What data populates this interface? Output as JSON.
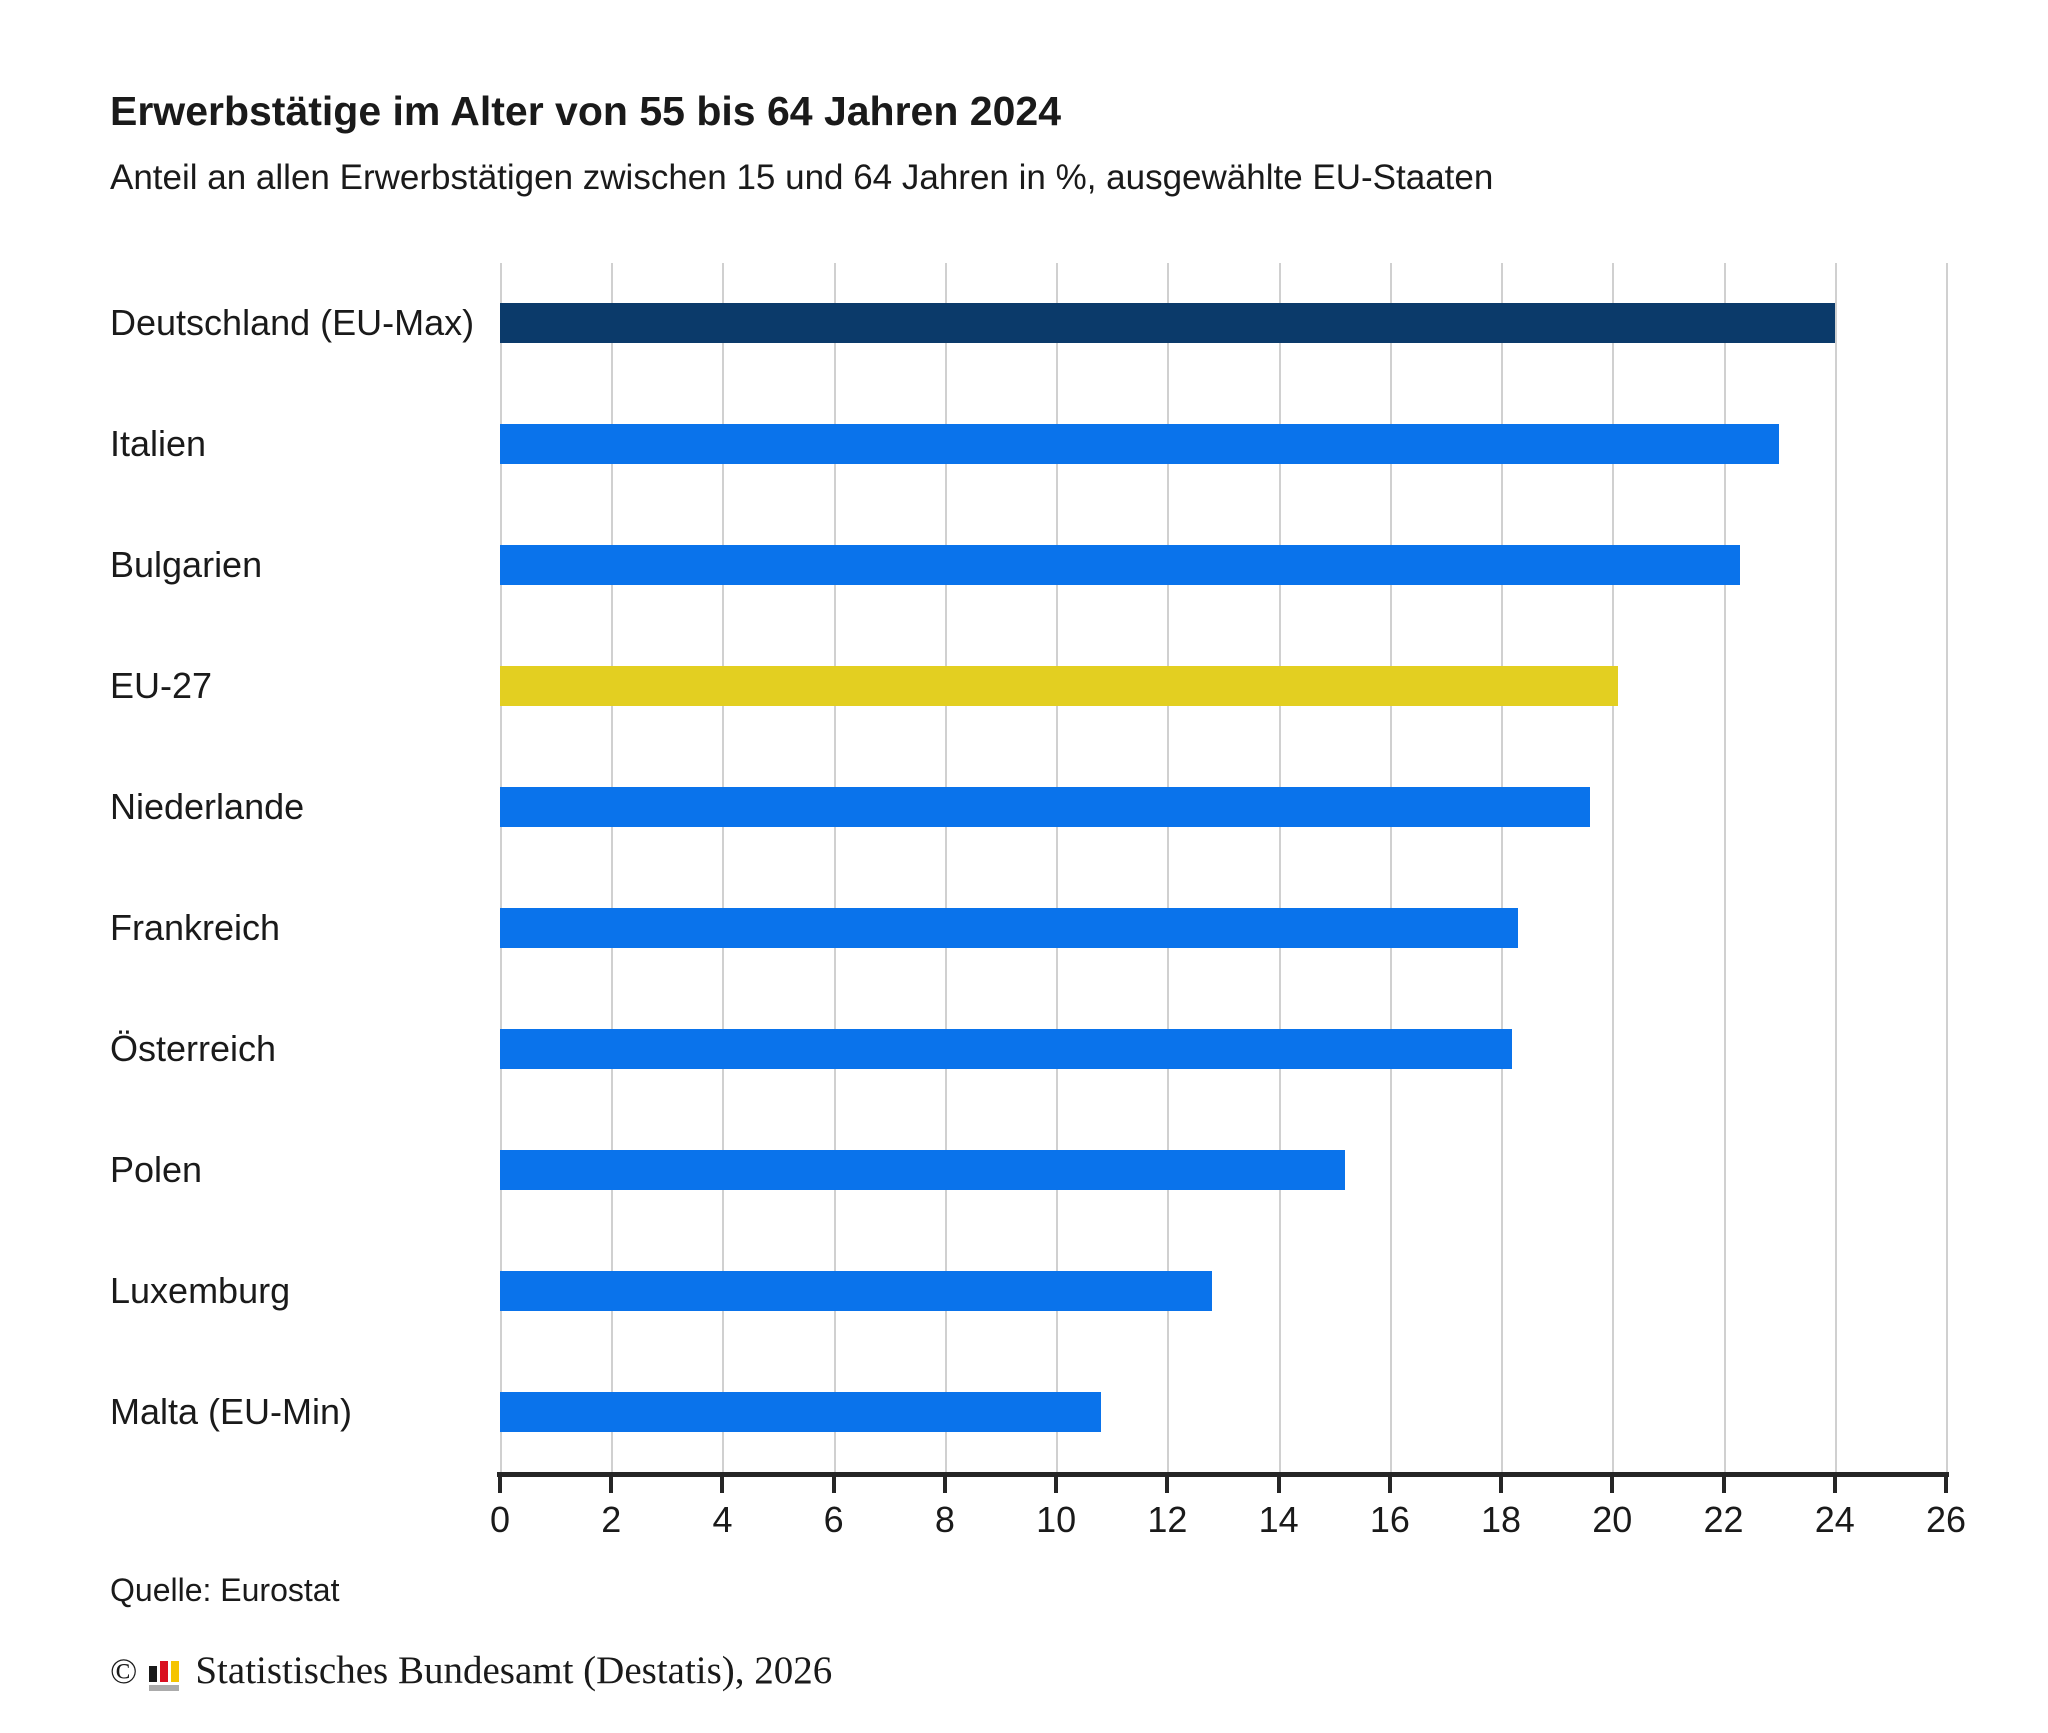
{
  "title": "Erwerbstätige im Alter von 55 bis 64 Jahren 2024",
  "subtitle": "Anteil an allen Erwerbstätigen zwischen 15 und 64 Jahren in %, ausgewählte EU-Staaten",
  "source": "Quelle: Eurostat",
  "footer": {
    "copyright": "©",
    "logo": "destatis-logo",
    "text": "Statistisches Bundesamt (Destatis), 2026"
  },
  "chart_data": {
    "type": "bar",
    "orientation": "horizontal",
    "title": "Erwerbstätige im Alter von 55 bis 64 Jahren 2024",
    "subtitle": "Anteil an allen Erwerbstätigen zwischen 15 und 64 Jahren in %, ausgewählte EU-Staaten",
    "categories": [
      "Deutschland (EU-Max)",
      "Italien",
      "Bulgarien",
      "EU-27",
      "Niederlande",
      "Frankreich",
      "Österreich",
      "Polen",
      "Luxemburg",
      "Malta (EU-Min)"
    ],
    "values": [
      24.0,
      23.0,
      22.3,
      20.1,
      19.6,
      18.3,
      18.2,
      15.2,
      12.8,
      10.8
    ],
    "unit": "%",
    "xlim": [
      0,
      26
    ],
    "xticks": [
      0,
      2,
      4,
      6,
      8,
      10,
      12,
      14,
      16,
      18,
      20,
      22,
      24,
      26
    ],
    "grid": true,
    "legend": "none",
    "colors": {
      "default": "#0a73eb",
      "highlight_max": "#0b3a6a",
      "highlight_eu27": "#e3cf21",
      "gridline": "#d0d0d0",
      "axis": "#262626",
      "text": "#1a1a1a"
    },
    "bar_color_keys": [
      "highlight_max",
      "default",
      "default",
      "highlight_eu27",
      "default",
      "default",
      "default",
      "default",
      "default",
      "default"
    ]
  }
}
